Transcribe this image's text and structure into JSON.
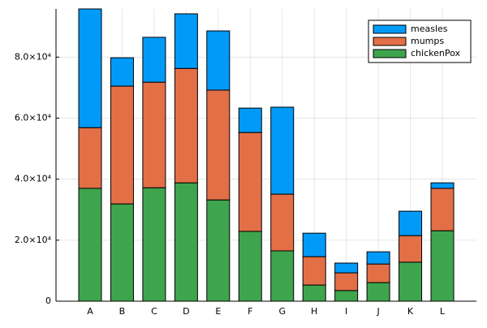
{
  "chart_data": {
    "type": "stacked_bar",
    "categories": [
      "A",
      "B",
      "C",
      "D",
      "E",
      "F",
      "G",
      "H",
      "I",
      "J",
      "K",
      "L"
    ],
    "series": [
      {
        "name": "measles",
        "color": "#009af9",
        "values": [
          38900,
          9300,
          14700,
          17900,
          19400,
          8000,
          28500,
          7700,
          3200,
          4000,
          8000,
          1800
        ]
      },
      {
        "name": "mumps",
        "color": "#e26f46",
        "values": [
          19900,
          38600,
          34600,
          37500,
          36000,
          32400,
          18600,
          9300,
          5800,
          6100,
          8700,
          13900
        ]
      },
      {
        "name": "chickenPox",
        "color": "#3ea44e",
        "values": [
          37000,
          31900,
          37200,
          38800,
          33200,
          22900,
          16500,
          5300,
          3500,
          6100,
          12800,
          23100
        ]
      }
    ],
    "ylim": [
      0,
      95800
    ],
    "yticks": [
      0,
      {
        "value": 20000,
        "label": "2.0×10⁴"
      },
      {
        "value": 40000,
        "label": "4.0×10⁴"
      },
      {
        "value": 60000,
        "label": "6.0×10⁴"
      },
      {
        "value": 80000,
        "label": "8.0×10⁴"
      }
    ],
    "grid": true,
    "legend": "top-right"
  }
}
